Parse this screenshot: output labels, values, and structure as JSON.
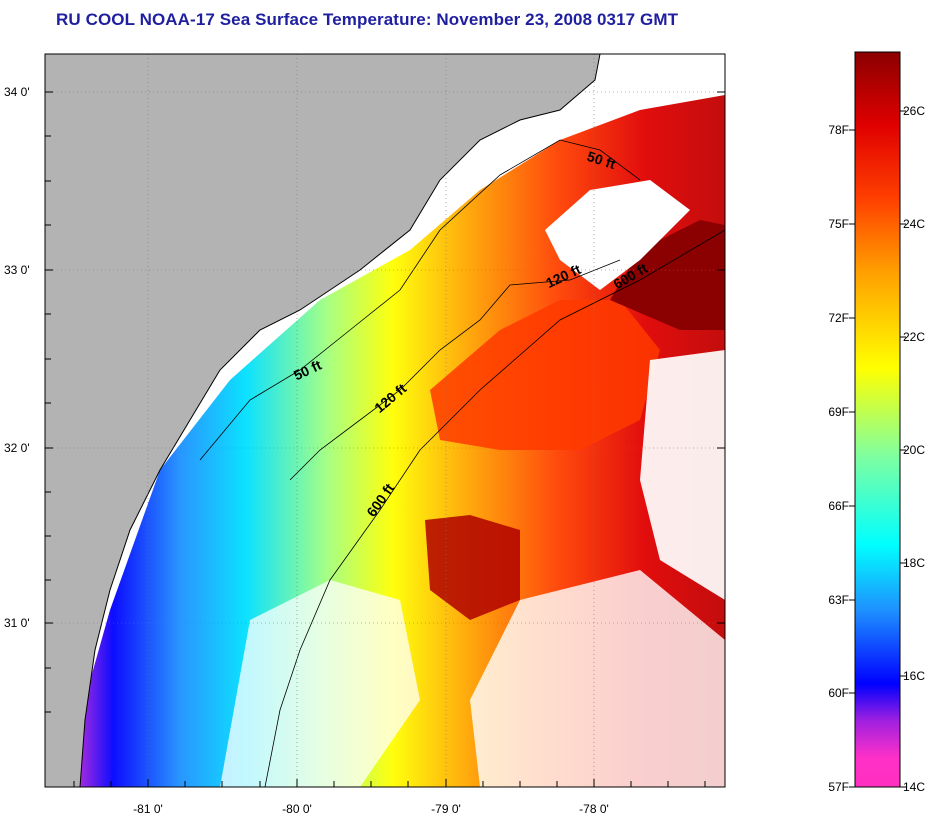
{
  "title": "RU COOL  NOAA-17  Sea Surface Temperature:  November 23, 2008 0317 GMT",
  "x_axis_labels": [
    "-81 0'",
    "-80 0'",
    "-79 0'",
    "-78 0'"
  ],
  "y_axis_labels": [
    "34 0'",
    "33 0'",
    "32 0'",
    "31 0'"
  ],
  "depth_contour_labels": [
    "50 ft",
    "50 ft",
    "120 ft",
    "120 ft",
    "600 ft",
    "600 ft"
  ],
  "colorbar": {
    "fahrenheit_labels": [
      "78F",
      "75F",
      "72F",
      "69F",
      "66F",
      "63F",
      "60F",
      "57F"
    ],
    "celsius_labels": [
      "26C",
      "24C",
      "22C",
      "20C",
      "18C",
      "16C",
      "14C"
    ],
    "min_celsius": 14,
    "max_celsius": 27.5,
    "stops": [
      "#ff2fbf",
      "#a020e0",
      "#0000ff",
      "#1e90ff",
      "#00ffff",
      "#7fffa0",
      "#ffff00",
      "#ffa000",
      "#ff4000",
      "#e00000",
      "#8b0000"
    ]
  },
  "map": {
    "lon_range": [
      -81.6,
      -77.2
    ],
    "lat_range": [
      30.2,
      34.2
    ],
    "land_color": "#b3b3b3",
    "no_data_color": "#ffffff"
  }
}
